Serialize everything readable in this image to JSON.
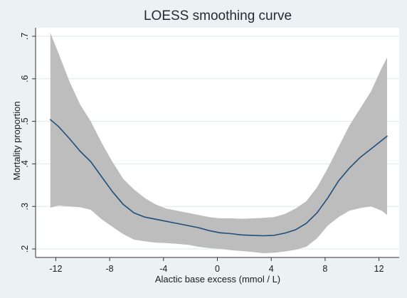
{
  "chart_data": {
    "type": "line",
    "title": "LOESS smoothing curve",
    "xlabel": "Alactic base excess (mmol / L)",
    "ylabel": "Mortality proportion",
    "xlim": [
      -13.5,
      13.5
    ],
    "ylim": [
      0.18,
      0.72
    ],
    "xticks": [
      -12,
      -8,
      -4,
      0,
      4,
      8,
      12
    ],
    "xtick_labels": [
      "-12",
      "-8",
      "-4",
      "0",
      "4",
      "8",
      "12"
    ],
    "yticks": [
      0.2,
      0.3,
      0.4,
      0.5,
      0.6,
      0.7
    ],
    "ytick_labels": [
      ".2",
      ".3",
      ".4",
      ".5",
      ".6",
      ".7"
    ],
    "grid": "horizontal",
    "legend": "none",
    "colors": {
      "line": "#1f4e79",
      "band": "#bdbdbd",
      "plot_bg": "#ffffff",
      "outer_bg": "#eaf2f3",
      "grid": "#dde8ea",
      "title": "#1f2a33"
    },
    "series": [
      {
        "role": "estimate",
        "x": [
          -12.4,
          -11.8,
          -11,
          -10.2,
          -9.4,
          -8.6,
          -7.8,
          -7,
          -6.2,
          -5.4,
          -4.6,
          -3.8,
          -3,
          -2.2,
          -1.4,
          -0.6,
          0.2,
          1,
          1.8,
          2.6,
          3.4,
          4.2,
          5,
          5.8,
          6.6,
          7.4,
          8.2,
          9,
          9.8,
          10.6,
          11.4,
          12.2,
          12.6
        ],
        "y": [
          0.504,
          0.488,
          0.46,
          0.43,
          0.405,
          0.37,
          0.335,
          0.305,
          0.285,
          0.275,
          0.27,
          0.265,
          0.26,
          0.255,
          0.25,
          0.243,
          0.238,
          0.236,
          0.233,
          0.232,
          0.231,
          0.232,
          0.237,
          0.245,
          0.26,
          0.285,
          0.32,
          0.36,
          0.39,
          0.415,
          0.435,
          0.455,
          0.465
        ]
      },
      {
        "role": "upper_ci",
        "x": [
          -12.4,
          -11.8,
          -11,
          -10.2,
          -9.4,
          -8.6,
          -7.8,
          -7,
          -6.2,
          -5.4,
          -4.6,
          -3.8,
          -3,
          -2.2,
          -1.4,
          -0.6,
          0.2,
          1,
          1.8,
          2.6,
          3.4,
          4.2,
          5,
          5.8,
          6.6,
          7.4,
          8.2,
          9,
          9.8,
          10.6,
          11.4,
          12.2,
          12.6
        ],
        "y": [
          0.708,
          0.66,
          0.595,
          0.54,
          0.5,
          0.45,
          0.405,
          0.365,
          0.34,
          0.32,
          0.305,
          0.295,
          0.29,
          0.285,
          0.28,
          0.275,
          0.272,
          0.272,
          0.271,
          0.272,
          0.273,
          0.275,
          0.282,
          0.295,
          0.312,
          0.345,
          0.39,
          0.44,
          0.49,
          0.53,
          0.57,
          0.625,
          0.65
        ]
      },
      {
        "role": "lower_ci",
        "x": [
          -12.4,
          -11.8,
          -11,
          -10.2,
          -9.4,
          -8.6,
          -7.8,
          -7,
          -6.2,
          -5.4,
          -4.6,
          -3.8,
          -3,
          -2.2,
          -1.4,
          -0.6,
          0.2,
          1,
          1.8,
          2.6,
          3.4,
          4.2,
          5,
          5.8,
          6.6,
          7.4,
          8.2,
          9,
          9.8,
          10.6,
          11.4,
          12.2,
          12.6
        ],
        "y": [
          0.297,
          0.302,
          0.3,
          0.298,
          0.292,
          0.27,
          0.252,
          0.235,
          0.222,
          0.218,
          0.215,
          0.214,
          0.212,
          0.21,
          0.205,
          0.202,
          0.2,
          0.197,
          0.195,
          0.193,
          0.19,
          0.191,
          0.194,
          0.198,
          0.205,
          0.225,
          0.255,
          0.275,
          0.29,
          0.296,
          0.3,
          0.29,
          0.28
        ]
      }
    ]
  }
}
